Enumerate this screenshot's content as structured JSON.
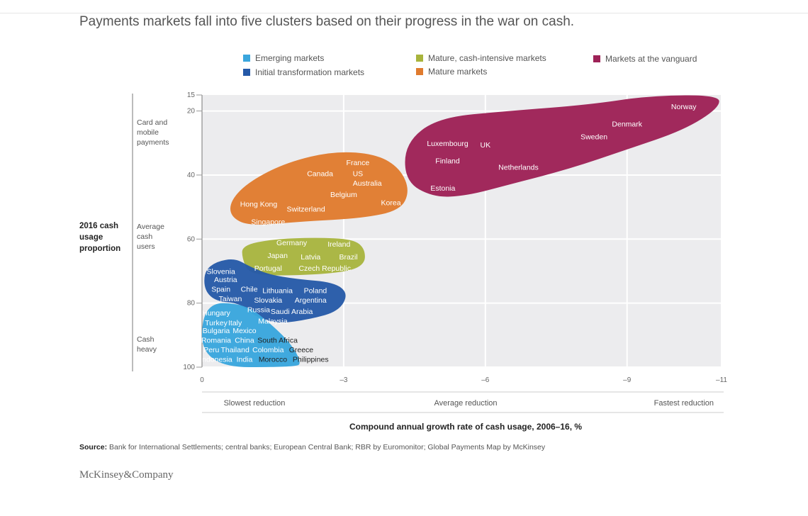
{
  "title": "Payments markets fall into five clusters based on their progress in the war on cash.",
  "legend": [
    {
      "label": "Emerging markets",
      "color": "#3aa6dd"
    },
    {
      "label": "Initial transformation markets",
      "color": "#2559a8"
    },
    {
      "label": "Mature, cash-intensive markets",
      "color": "#a8b43c"
    },
    {
      "label": "Mature markets",
      "color": "#e07b2e"
    },
    {
      "label": "Markets at the vanguard",
      "color": "#9e2257"
    }
  ],
  "source_label": "Source:",
  "source_text": "Bank for International Settlements; central banks; European Central Bank; RBR by Euromonitor; Global Payments Map by McKinsey",
  "logo": "McKinsey&Company",
  "chart_data": {
    "type": "scatter",
    "xlabel": "Compound annual growth rate of cash usage, 2006–16, %",
    "ylabel": "2016 cash usage proportion",
    "xlim": [
      0,
      -11
    ],
    "ylim": [
      15,
      100
    ],
    "y_inverted": true,
    "x_ticks": [
      "0",
      "–3",
      "–6",
      "–9",
      "–11"
    ],
    "x_tick_values": [
      0,
      -3,
      -6,
      -9,
      -11
    ],
    "y_ticks": [
      "15",
      "20",
      "40",
      "60",
      "80",
      "100"
    ],
    "y_tick_values": [
      15,
      20,
      40,
      60,
      80,
      100
    ],
    "x_categories": [
      "Slowest reduction",
      "Average reduction",
      "Fastest reduction"
    ],
    "y_categories": [
      "Card and mobile payments",
      "Average cash users",
      "Cash heavy"
    ],
    "grid": true,
    "series": [
      {
        "name": "Markets at the vanguard",
        "color": "#9e2257",
        "points": [
          {
            "label": "Norway",
            "x": -10.2,
            "y": 18.5
          },
          {
            "label": "Denmark",
            "x": -9.0,
            "y": 24
          },
          {
            "label": "Sweden",
            "x": -8.3,
            "y": 28
          },
          {
            "label": "Luxembourg",
            "x": -5.2,
            "y": 30
          },
          {
            "label": "UK",
            "x": -6.0,
            "y": 30.5
          },
          {
            "label": "Finland",
            "x": -5.2,
            "y": 35.5
          },
          {
            "label": "Netherlands",
            "x": -6.7,
            "y": 37.5
          },
          {
            "label": "Estonia",
            "x": -5.1,
            "y": 44
          }
        ]
      },
      {
        "name": "Mature markets",
        "color": "#e07b2e",
        "points": [
          {
            "label": "France",
            "x": -3.3,
            "y": 36
          },
          {
            "label": "Canada",
            "x": -2.5,
            "y": 39.5
          },
          {
            "label": "US",
            "x": -3.3,
            "y": 39.5
          },
          {
            "label": "Australia",
            "x": -3.5,
            "y": 42.5
          },
          {
            "label": "Belgium",
            "x": -3.0,
            "y": 46
          },
          {
            "label": "Hong Kong",
            "x": -1.2,
            "y": 49
          },
          {
            "label": "Korea",
            "x": -4.0,
            "y": 48.5
          },
          {
            "label": "Switzerland",
            "x": -2.2,
            "y": 50.5
          },
          {
            "label": "Singapore",
            "x": -1.4,
            "y": 54.5
          }
        ]
      },
      {
        "name": "Mature, cash-intensive markets",
        "color": "#a8b43c",
        "points": [
          {
            "label": "Germany",
            "x": -1.9,
            "y": 61
          },
          {
            "label": "Ireland",
            "x": -2.9,
            "y": 61.5
          },
          {
            "label": "Japan",
            "x": -1.6,
            "y": 65
          },
          {
            "label": "Latvia",
            "x": -2.3,
            "y": 65.5
          },
          {
            "label": "Brazil",
            "x": -3.1,
            "y": 65.5
          },
          {
            "label": "Portugal",
            "x": -1.4,
            "y": 69
          },
          {
            "label": "Czech Republic",
            "x": -2.6,
            "y": 69
          }
        ]
      },
      {
        "name": "Initial transformation markets",
        "color": "#2559a8",
        "points": [
          {
            "label": "Slovenia",
            "x": -0.4,
            "y": 70
          },
          {
            "label": "Austria",
            "x": -0.5,
            "y": 72.5
          },
          {
            "label": "Spain",
            "x": -0.4,
            "y": 75.5
          },
          {
            "label": "Chile",
            "x": -1.0,
            "y": 75.5
          },
          {
            "label": "Lithuania",
            "x": -1.6,
            "y": 76
          },
          {
            "label": "Poland",
            "x": -2.4,
            "y": 76
          },
          {
            "label": "Taiwan",
            "x": -0.6,
            "y": 78.5
          },
          {
            "label": "Slovakia",
            "x": -1.4,
            "y": 79
          },
          {
            "label": "Argentina",
            "x": -2.3,
            "y": 79
          },
          {
            "label": "Russia",
            "x": -1.2,
            "y": 82
          },
          {
            "label": "Saudi Arabia",
            "x": -1.9,
            "y": 82.5
          },
          {
            "label": "Malaysia",
            "x": -1.5,
            "y": 85.5
          }
        ]
      },
      {
        "name": "Emerging markets",
        "color": "#3aa6dd",
        "points": [
          {
            "label": "Hungary",
            "x": -0.3,
            "y": 83
          },
          {
            "label": "Turkey",
            "x": -0.3,
            "y": 86
          },
          {
            "label": "Italy",
            "x": -0.7,
            "y": 86
          },
          {
            "label": "Bulgaria",
            "x": -0.3,
            "y": 88.5
          },
          {
            "label": "Mexico",
            "x": -0.9,
            "y": 88.5
          },
          {
            "label": "Romania",
            "x": -0.3,
            "y": 91.5
          },
          {
            "label": "China",
            "x": -0.9,
            "y": 91.5
          },
          {
            "label": "South Africa",
            "x": -1.6,
            "y": 91.5
          },
          {
            "label": "Peru",
            "x": -0.2,
            "y": 94.5
          },
          {
            "label": "Thailand",
            "x": -0.7,
            "y": 94.5
          },
          {
            "label": "Colombia",
            "x": -1.4,
            "y": 94.5
          },
          {
            "label": "Greece",
            "x": -2.1,
            "y": 94.5
          },
          {
            "label": "Indonesia",
            "x": -0.3,
            "y": 97.5
          },
          {
            "label": "India",
            "x": -0.9,
            "y": 97.5
          },
          {
            "label": "Morocco",
            "x": -1.5,
            "y": 97.5
          },
          {
            "label": "Philippines",
            "x": -2.3,
            "y": 97.5
          }
        ]
      }
    ]
  }
}
